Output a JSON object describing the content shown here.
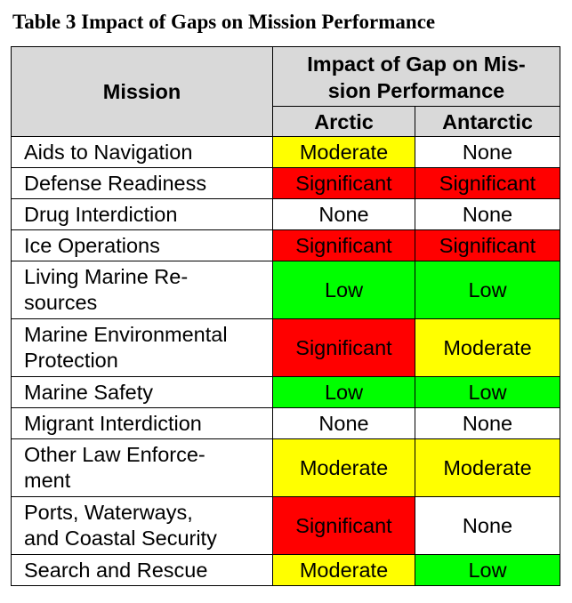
{
  "caption": "Table 3  Impact of Gaps on Mission Performance",
  "header": {
    "mission": "Mission",
    "impact": "Impact of Gap on Mis-sion Performance",
    "arctic": "Arctic",
    "antarctic": "Antarctic"
  },
  "colors": {
    "Moderate": "#ffff00",
    "Significant": "#ff0000",
    "Low": "#00ff00",
    "None": "#ffffff",
    "header_bg": "#d9d9d9"
  },
  "rows": [
    {
      "mission": "Aids to Navigation",
      "arctic": "Moderate",
      "antarctic": "None"
    },
    {
      "mission": "Defense Readiness",
      "arctic": "Significant",
      "antarctic": "Significant"
    },
    {
      "mission": "Drug Interdiction",
      "arctic": "None",
      "antarctic": "None"
    },
    {
      "mission": "Ice Operations",
      "arctic": "Significant",
      "antarctic": "Significant"
    },
    {
      "mission": "Living Marine Re-sources",
      "arctic": "Low",
      "antarctic": "Low"
    },
    {
      "mission": "Marine Environmental Protection",
      "arctic": "Significant",
      "antarctic": "Moderate"
    },
    {
      "mission": "Marine Safety",
      "arctic": "Low",
      "antarctic": "Low"
    },
    {
      "mission": "Migrant Interdiction",
      "arctic": "None",
      "antarctic": "None"
    },
    {
      "mission": "Other Law Enforce-ment",
      "arctic": "Moderate",
      "antarctic": "Moderate"
    },
    {
      "mission": "Ports, Waterways, and Coastal Security",
      "arctic": "Significant",
      "antarctic": "None"
    },
    {
      "mission": "Search and Rescue",
      "arctic": "Moderate",
      "antarctic": "Low"
    }
  ]
}
